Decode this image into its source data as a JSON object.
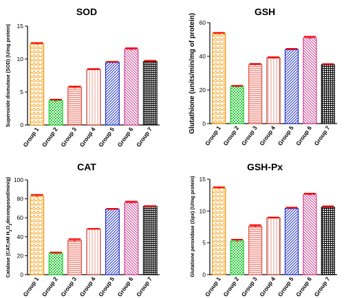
{
  "chart_data": [
    {
      "type": "bar",
      "title": "SOD",
      "ylabel": "Superoxide dismutase (SOD) (U/mg protein)",
      "ylim": [
        0,
        15
      ],
      "yticks": [
        0,
        5,
        10,
        15
      ],
      "categories": [
        "Group 1",
        "Group 2",
        "Group 3",
        "Group 4",
        "Group 5",
        "Group 6",
        "Group 7"
      ],
      "values": [
        12.3,
        3.7,
        5.7,
        8.4,
        9.5,
        11.5,
        9.6
      ],
      "errors": [
        0.15,
        0.15,
        0.15,
        0.1,
        0.1,
        0.15,
        0.15
      ]
    },
    {
      "type": "bar",
      "title": "GSH",
      "ylabel": "Glutathione (units/min/mg of protein)",
      "ylim": [
        0,
        60
      ],
      "yticks": [
        0,
        20,
        40,
        60
      ],
      "categories": [
        "Group 1",
        "Group 2",
        "Group 3",
        "Group 4",
        "Group 5",
        "Group 6",
        "Group 7"
      ],
      "values": [
        53.5,
        22,
        35,
        39,
        44,
        51,
        35
      ],
      "errors": [
        0.5,
        0.5,
        0.5,
        0.5,
        0.5,
        0.7,
        0.4
      ]
    },
    {
      "type": "bar",
      "title": "CAT",
      "ylabel_parts": [
        "Catalase (CAT,nM H",
        "2",
        "O",
        "2",
        "decomposed/min/g)"
      ],
      "ylim": [
        0,
        100
      ],
      "yticks": [
        0,
        20,
        40,
        60,
        80,
        100
      ],
      "categories": [
        "Group 1",
        "Group 2",
        "Group 3",
        "Group 4",
        "Group 5",
        "Group 6",
        "Group 7"
      ],
      "values": [
        83,
        22.5,
        36,
        48,
        69,
        76,
        72
      ],
      "errors": [
        1.2,
        1,
        1.5,
        0.5,
        0.6,
        1.2,
        0.5
      ]
    },
    {
      "type": "bar",
      "title": "GSH-Px",
      "ylabel": "Glutatione peroxidase (Gpx) (U/mg protein)",
      "ylim": [
        0,
        15
      ],
      "yticks": [
        0,
        5,
        10,
        15
      ],
      "categories": [
        "Group 1",
        "Group 2",
        "Group 3",
        "Group 4",
        "Group 5",
        "Group 6",
        "Group 7"
      ],
      "values": [
        13.6,
        5.3,
        7.6,
        8.9,
        10.4,
        12.6,
        10.6
      ],
      "errors": [
        0.15,
        0.2,
        0.2,
        0.1,
        0.15,
        0.15,
        0.15
      ]
    }
  ],
  "bar_colors": [
    "#f5a623",
    "#22cc33",
    "#e07060",
    "#c0392b",
    "#2233cc",
    "#d04090",
    "#111111"
  ],
  "error_color": "#ff0000"
}
